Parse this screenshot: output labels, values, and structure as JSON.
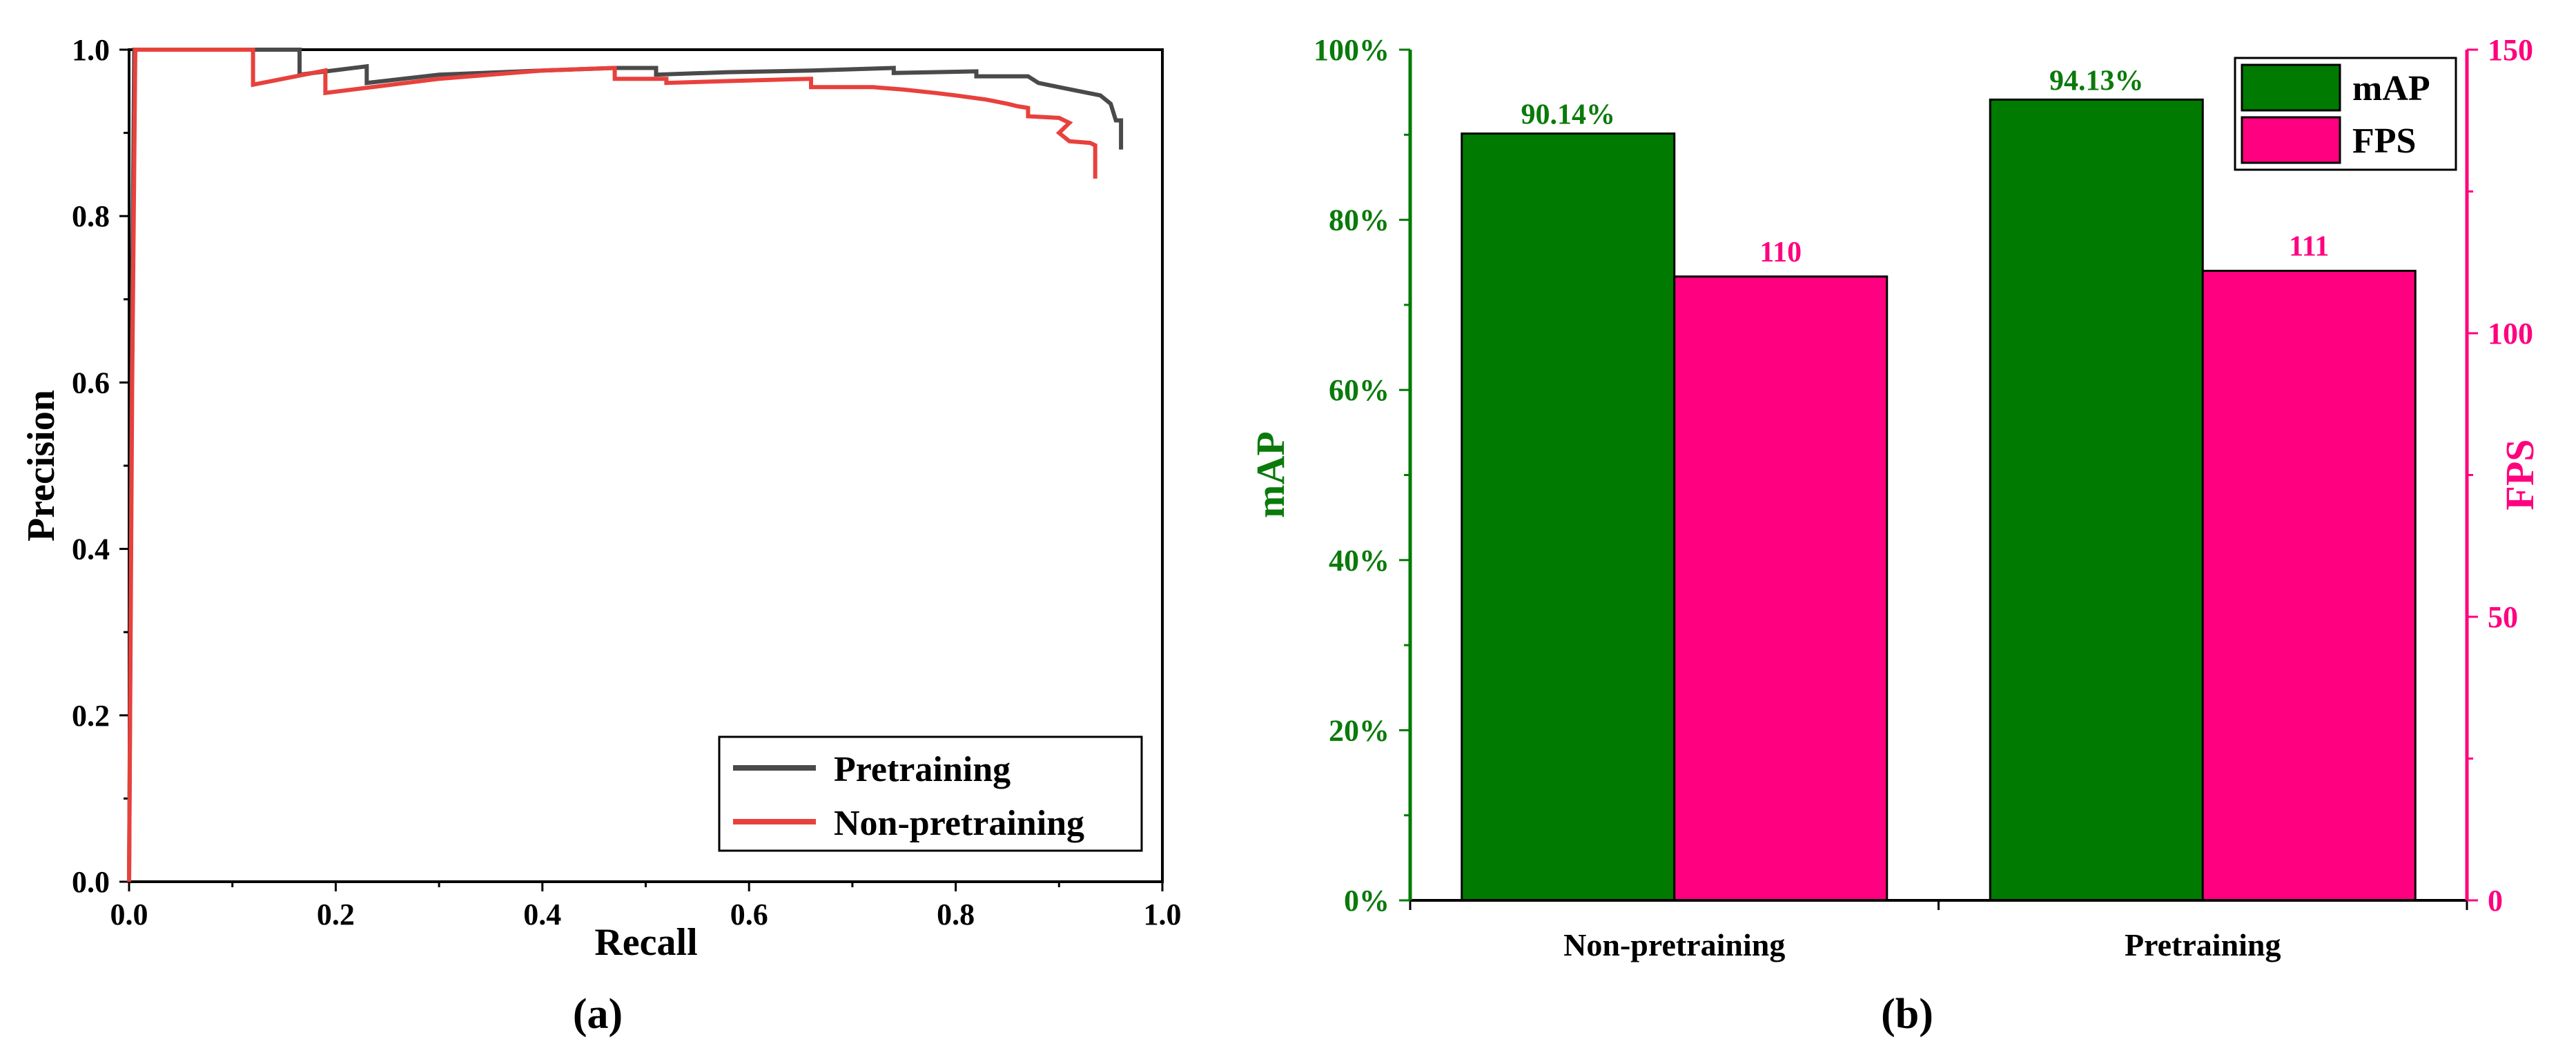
{
  "chart_data": [
    {
      "type": "line",
      "panel_label": "(a)",
      "xlabel": "Recall",
      "ylabel": "Precision",
      "xlim": [
        0,
        1
      ],
      "ylim": [
        0,
        1
      ],
      "xticks": [
        "0.0",
        "0.2",
        "0.4",
        "0.6",
        "0.8",
        "1.0"
      ],
      "yticks": [
        "0.0",
        "0.2",
        "0.4",
        "0.6",
        "0.8",
        "1.0"
      ],
      "legend_position": "bottom-right",
      "series": [
        {
          "name": "Pretraining",
          "color": "#4a4a4a",
          "points": [
            [
              0,
              0
            ],
            [
              0.003,
              0.7
            ],
            [
              0.005,
              1.0
            ],
            [
              0.165,
              1.0
            ],
            [
              0.165,
              0.97
            ],
            [
              0.23,
              0.98
            ],
            [
              0.23,
              0.96
            ],
            [
              0.3,
              0.97
            ],
            [
              0.4,
              0.975
            ],
            [
              0.47,
              0.978
            ],
            [
              0.51,
              0.978
            ],
            [
              0.51,
              0.97
            ],
            [
              0.58,
              0.973
            ],
            [
              0.66,
              0.975
            ],
            [
              0.74,
              0.978
            ],
            [
              0.74,
              0.972
            ],
            [
              0.82,
              0.974
            ],
            [
              0.82,
              0.968
            ],
            [
              0.87,
              0.968
            ],
            [
              0.88,
              0.96
            ],
            [
              0.9,
              0.955
            ],
            [
              0.92,
              0.95
            ],
            [
              0.94,
              0.945
            ],
            [
              0.95,
              0.935
            ],
            [
              0.955,
              0.915
            ],
            [
              0.96,
              0.915
            ],
            [
              0.96,
              0.88
            ]
          ]
        },
        {
          "name": "Non-pretraining",
          "color": "#e8413c",
          "points": [
            [
              0,
              0
            ],
            [
              0.003,
              0.6
            ],
            [
              0.006,
              1.0
            ],
            [
              0.12,
              1.0
            ],
            [
              0.12,
              0.958
            ],
            [
              0.19,
              0.975
            ],
            [
              0.19,
              0.948
            ],
            [
              0.3,
              0.965
            ],
            [
              0.4,
              0.975
            ],
            [
              0.47,
              0.978
            ],
            [
              0.47,
              0.965
            ],
            [
              0.52,
              0.965
            ],
            [
              0.52,
              0.96
            ],
            [
              0.6,
              0.963
            ],
            [
              0.66,
              0.965
            ],
            [
              0.66,
              0.955
            ],
            [
              0.72,
              0.955
            ],
            [
              0.75,
              0.952
            ],
            [
              0.78,
              0.948
            ],
            [
              0.8,
              0.945
            ],
            [
              0.83,
              0.94
            ],
            [
              0.85,
              0.935
            ],
            [
              0.86,
              0.932
            ],
            [
              0.87,
              0.93
            ],
            [
              0.87,
              0.92
            ],
            [
              0.9,
              0.918
            ],
            [
              0.91,
              0.912
            ],
            [
              0.9,
              0.9
            ],
            [
              0.91,
              0.89
            ],
            [
              0.93,
              0.888
            ],
            [
              0.935,
              0.885
            ],
            [
              0.935,
              0.845
            ]
          ]
        }
      ]
    },
    {
      "type": "bar",
      "panel_label": "(b)",
      "categories": [
        "Non-pretraining",
        "Pretraining"
      ],
      "ylabel_left": "mAP",
      "ylabel_right": "FPS",
      "ylim_left": [
        0,
        100
      ],
      "ylim_right": [
        0,
        150
      ],
      "yticks_left": [
        "0%",
        "20%",
        "40%",
        "60%",
        "80%",
        "100%"
      ],
      "yticks_right": [
        "0",
        "50",
        "100",
        "150"
      ],
      "legend_position": "top-right",
      "series": [
        {
          "name": "mAP",
          "axis": "left",
          "color": "#007a00",
          "text_color": "#0a7a0a",
          "values": [
            90.14,
            94.13
          ],
          "labels": [
            "90.14%",
            "94.13%"
          ]
        },
        {
          "name": "FPS",
          "axis": "right",
          "color": "#ff0080",
          "text_color": "#ff007f",
          "values": [
            110,
            111
          ],
          "labels": [
            "110",
            "111"
          ]
        }
      ]
    }
  ]
}
